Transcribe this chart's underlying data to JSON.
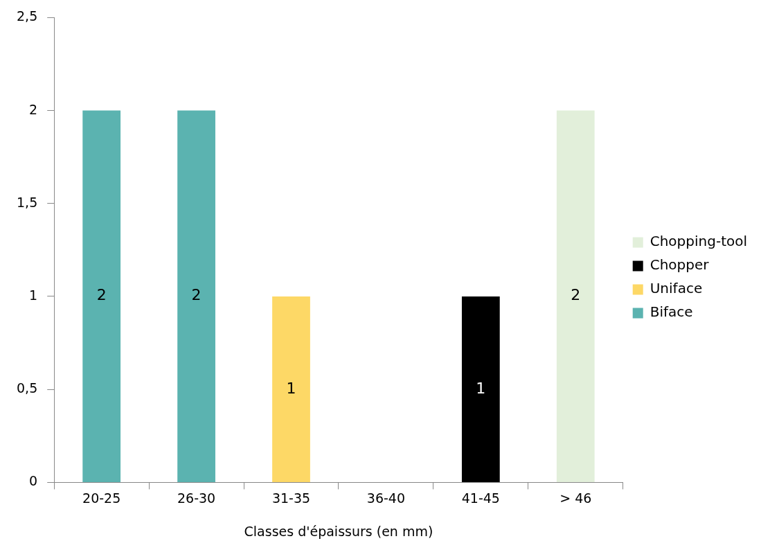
{
  "chart_data": {
    "type": "bar",
    "xlabel": "Classes d'épaissurs (en mm)",
    "categories": [
      "20-25",
      "26-30",
      "31-35",
      "36-40",
      "41-45",
      "> 46"
    ],
    "stacked": true,
    "series": [
      {
        "name": "Biface",
        "color": "#5bb3b0",
        "values": [
          2,
          2,
          null,
          null,
          null,
          null
        ]
      },
      {
        "name": "Uniface",
        "color": "#fdd866",
        "values": [
          null,
          null,
          1,
          null,
          null,
          null
        ]
      },
      {
        "name": "Chopper",
        "color": "#000000",
        "values": [
          null,
          null,
          null,
          null,
          1,
          null
        ]
      },
      {
        "name": "Chopping-tool",
        "color": "#e2efda",
        "values": [
          null,
          null,
          null,
          null,
          null,
          2
        ]
      }
    ],
    "ylim": [
      0,
      2.5
    ],
    "yticks": [
      0,
      {
        "value": 0.5,
        "label": "0,5"
      },
      1,
      {
        "value": 1.5,
        "label": "1,5"
      },
      2,
      {
        "value": 2.5,
        "label": "2,5"
      }
    ],
    "legend": "right",
    "data_labels": true
  }
}
